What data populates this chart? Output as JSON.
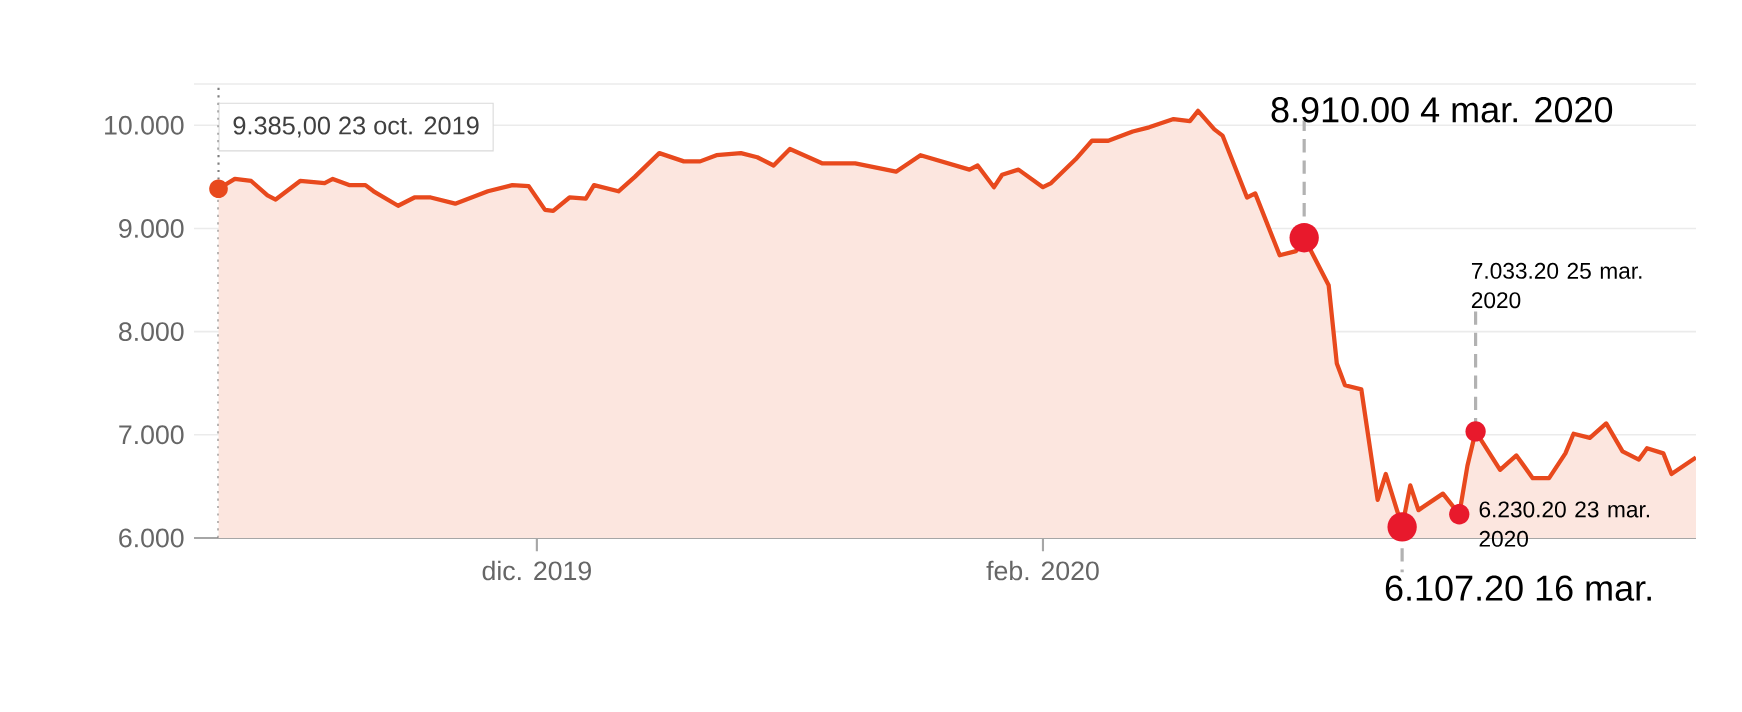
{
  "chart_data": {
    "type": "area",
    "color": "#e8491d",
    "grid": "y",
    "marker": "none",
    "x": [
      "2019-10-23",
      "2019-10-25",
      "2019-10-27",
      "2019-10-29",
      "2019-10-30",
      "2019-11-02",
      "2019-11-05",
      "2019-11-06",
      "2019-11-08",
      "2019-11-10",
      "2019-11-11",
      "2019-11-14",
      "2019-11-16",
      "2019-11-18",
      "2019-11-21",
      "2019-11-25",
      "2019-11-28",
      "2019-11-30",
      "2019-12-02",
      "2019-12-03",
      "2019-12-05",
      "2019-12-07",
      "2019-12-08",
      "2019-12-11",
      "2019-12-13",
      "2019-12-16",
      "2019-12-19",
      "2019-12-21",
      "2019-12-23",
      "2019-12-26",
      "2019-12-28",
      "2019-12-30",
      "2020-01-01",
      "2020-01-05",
      "2020-01-09",
      "2020-01-14",
      "2020-01-17",
      "2020-01-23",
      "2020-01-24",
      "2020-01-26",
      "2020-01-27",
      "2020-01-29",
      "2020-02-01",
      "2020-02-02",
      "2020-02-05",
      "2020-02-07",
      "2020-02-09",
      "2020-02-12",
      "2020-02-14",
      "2020-02-17",
      "2020-02-19",
      "2020-02-20",
      "2020-02-22",
      "2020-02-23",
      "2020-02-26",
      "2020-02-27",
      "2020-03-01",
      "2020-03-03",
      "2020-03-04",
      "2020-03-07",
      "2020-03-08",
      "2020-03-09",
      "2020-03-11",
      "2020-03-13",
      "2020-03-14",
      "2020-03-16",
      "2020-03-17",
      "2020-03-18",
      "2020-03-21",
      "2020-03-23",
      "2020-03-24",
      "2020-03-25",
      "2020-03-28",
      "2020-03-30",
      "2020-04-01",
      "2020-04-03",
      "2020-04-05",
      "2020-04-06",
      "2020-04-08",
      "2020-04-10",
      "2020-04-12",
      "2020-04-14",
      "2020-04-15",
      "2020-04-17",
      "2020-04-18",
      "2020-04-21"
    ],
    "values": [
      9385,
      9480,
      9460,
      9320,
      9280,
      9460,
      9440,
      9480,
      9420,
      9420,
      9360,
      9220,
      9300,
      9300,
      9240,
      9360,
      9420,
      9410,
      9180,
      9170,
      9300,
      9290,
      9420,
      9360,
      9500,
      9730,
      9650,
      9650,
      9710,
      9730,
      9690,
      9610,
      9770,
      9630,
      9630,
      9550,
      9710,
      9570,
      9610,
      9400,
      9520,
      9570,
      9400,
      9440,
      9670,
      9850,
      9850,
      9940,
      9980,
      10060,
      10040,
      10140,
      9960,
      9900,
      9300,
      9340,
      8740,
      8780,
      8910,
      8450,
      7690,
      7480,
      7440,
      6370,
      6620,
      6107,
      6510,
      6270,
      6430,
      6230,
      6700,
      7033,
      6660,
      6800,
      6580,
      6580,
      6820,
      7010,
      6970,
      7110,
      6840,
      6760,
      6870,
      6820,
      6620,
      6780
    ],
    "ref_lines": [
      {
        "axis": "x",
        "value": "2019-10-23",
        "color": "#808080",
        "line_style": "dotted"
      }
    ],
    "xlim": [
      "2019-10-20",
      "2020-04-21"
    ],
    "xticks": [
      {
        "value": "2019-12-01",
        "label": "dic. 2019"
      },
      {
        "value": "2020-02-01",
        "label": "feb. 2020"
      }
    ],
    "ylim": [
      6000,
      10400
    ],
    "yticks": [
      {
        "value": 6000,
        "label": "6.000"
      },
      {
        "value": 7000,
        "label": "7.000"
      },
      {
        "value": 8000,
        "label": "8.000"
      },
      {
        "value": 9000,
        "label": "9.000"
      },
      {
        "value": 10000,
        "label": "10.000"
      }
    ],
    "annotations": [
      {
        "text": "9.385,00 23 oct. 2019",
        "x": "2019-10-23",
        "y": 9385
      },
      {
        "text": "8.910.00 4 mar. 2020",
        "x": "2020-03-04",
        "y": 8910
      },
      {
        "text": "7.033.20 25 mar. 2020",
        "x": "2020-03-25",
        "y": 7033
      },
      {
        "text": "6.230.20 23 mar. 2020",
        "x": "2020-03-23",
        "y": 6230
      },
      {
        "text": "6.107.20 16 mar.",
        "x": "2020-03-16",
        "y": 6107
      }
    ]
  }
}
